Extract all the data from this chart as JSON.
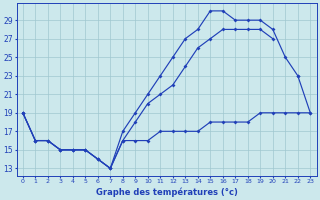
{
  "title": "Graphe des températures (°c)",
  "bg_color": "#cce8ec",
  "grid_color": "#a0c8d0",
  "line_color": "#2040b8",
  "x_ticks": [
    0,
    1,
    2,
    3,
    4,
    5,
    6,
    7,
    8,
    9,
    10,
    11,
    12,
    13,
    14,
    15,
    16,
    17,
    18,
    19,
    20,
    21,
    22,
    23
  ],
  "y_ticks": [
    13,
    15,
    17,
    19,
    21,
    23,
    25,
    27,
    29
  ],
  "ylim": [
    12.2,
    30.8
  ],
  "xlim": [
    -0.5,
    23.5
  ],
  "series1_x": [
    0,
    1,
    2,
    3,
    4,
    5,
    6,
    7,
    8,
    9,
    10,
    11,
    12,
    13,
    14,
    15,
    16,
    17,
    18,
    19,
    20,
    21,
    22,
    23
  ],
  "series1_y": [
    19,
    16,
    16,
    15,
    15,
    15,
    14,
    13,
    17,
    19,
    21,
    23,
    25,
    27,
    28,
    30,
    30,
    29,
    29,
    29,
    28,
    25,
    23,
    19
  ],
  "series2_x": [
    0,
    1,
    2,
    3,
    4,
    5,
    6,
    7,
    8,
    9,
    10,
    11,
    12,
    13,
    14,
    15,
    16,
    17,
    18,
    19,
    20,
    21,
    22,
    23
  ],
  "series2_y": [
    19,
    16,
    16,
    15,
    15,
    15,
    14,
    13,
    16,
    18,
    20,
    21,
    22,
    24,
    26,
    27,
    28,
    28,
    28,
    28,
    27,
    null,
    23,
    null
  ],
  "series3_x": [
    0,
    1,
    2,
    3,
    4,
    5,
    6,
    7,
    8,
    9,
    10,
    11,
    12,
    13,
    14,
    15,
    16,
    17,
    18,
    19,
    20,
    21,
    22,
    23
  ],
  "series3_y": [
    19,
    16,
    16,
    15,
    15,
    15,
    14,
    13,
    16,
    16,
    16,
    17,
    17,
    17,
    17,
    18,
    18,
    18,
    18,
    19,
    19,
    19,
    19,
    19
  ]
}
